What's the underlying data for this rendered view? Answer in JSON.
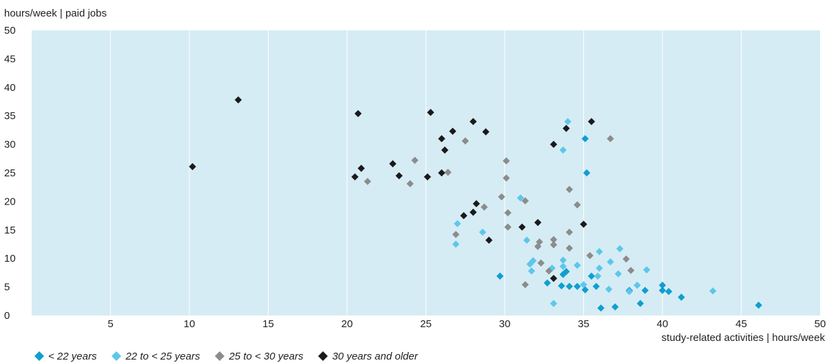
{
  "chart_data": {
    "type": "scatter",
    "title": "",
    "ylabel": "hours/week | paid jobs",
    "xlabel": "study-related activities | hours/week",
    "xlim": [
      0,
      50
    ],
    "ylim": [
      0,
      50
    ],
    "xticks": [
      5,
      10,
      15,
      20,
      25,
      30,
      35,
      40,
      45,
      50
    ],
    "yticks": [
      0,
      5,
      10,
      15,
      20,
      25,
      30,
      35,
      40,
      45,
      50
    ],
    "grid": "vertical",
    "background_color": "#d6ecf5",
    "legend_position": "bottom-left",
    "marker": "diamond",
    "series": [
      {
        "name": "< 22 years",
        "color": "#0f9fd0",
        "points": [
          [
            29.7,
            6.9
          ],
          [
            32.7,
            5.7
          ],
          [
            33.6,
            5.2
          ],
          [
            33.7,
            7.2
          ],
          [
            33.9,
            7.7
          ],
          [
            34.1,
            5.1
          ],
          [
            34.6,
            5.1
          ],
          [
            35.1,
            4.5
          ],
          [
            35.1,
            31.0
          ],
          [
            35.2,
            25.0
          ],
          [
            35.5,
            6.9
          ],
          [
            35.8,
            5.1
          ],
          [
            36.1,
            1.3
          ],
          [
            37.0,
            1.5
          ],
          [
            37.9,
            4.4
          ],
          [
            38.6,
            2.1
          ],
          [
            38.9,
            4.4
          ],
          [
            40.0,
            5.3
          ],
          [
            40.0,
            4.4
          ],
          [
            40.4,
            4.2
          ],
          [
            41.2,
            3.2
          ],
          [
            46.1,
            1.8
          ]
        ]
      },
      {
        "name": "22 to < 25 years",
        "color": "#5ec6eb",
        "points": [
          [
            26.9,
            12.5
          ],
          [
            27.0,
            16.1
          ],
          [
            28.6,
            14.6
          ],
          [
            31.0,
            20.6
          ],
          [
            31.4,
            13.2
          ],
          [
            31.6,
            9.0
          ],
          [
            31.7,
            7.8
          ],
          [
            31.8,
            9.6
          ],
          [
            33.0,
            8.3
          ],
          [
            33.1,
            2.1
          ],
          [
            33.7,
            9.7
          ],
          [
            33.7,
            8.6
          ],
          [
            33.7,
            29.0
          ],
          [
            34.0,
            34.0
          ],
          [
            34.6,
            8.8
          ],
          [
            35.0,
            5.4
          ],
          [
            35.9,
            6.9
          ],
          [
            36.0,
            8.3
          ],
          [
            36.0,
            11.2
          ],
          [
            36.6,
            4.6
          ],
          [
            36.7,
            9.4
          ],
          [
            37.2,
            7.3
          ],
          [
            37.3,
            11.7
          ],
          [
            37.9,
            4.2
          ],
          [
            38.4,
            5.3
          ],
          [
            39.0,
            8.0
          ],
          [
            43.2,
            4.3
          ]
        ]
      },
      {
        "name": "25 to < 30 years",
        "color": "#8c8c8c",
        "points": [
          [
            21.3,
            23.5
          ],
          [
            24.0,
            23.1
          ],
          [
            24.3,
            27.2
          ],
          [
            26.4,
            25.1
          ],
          [
            27.5,
            30.6
          ],
          [
            26.9,
            14.2
          ],
          [
            28.7,
            19.0
          ],
          [
            29.8,
            20.8
          ],
          [
            30.1,
            27.1
          ],
          [
            30.1,
            24.1
          ],
          [
            30.2,
            18.0
          ],
          [
            30.2,
            15.5
          ],
          [
            31.3,
            20.1
          ],
          [
            31.3,
            5.4
          ],
          [
            32.1,
            12.1
          ],
          [
            32.2,
            12.9
          ],
          [
            32.3,
            9.2
          ],
          [
            32.8,
            7.8
          ],
          [
            33.1,
            13.3
          ],
          [
            33.1,
            12.4
          ],
          [
            34.1,
            22.1
          ],
          [
            34.1,
            14.6
          ],
          [
            34.1,
            11.8
          ],
          [
            34.6,
            19.4
          ],
          [
            35.4,
            10.5
          ],
          [
            36.7,
            31.0
          ],
          [
            37.7,
            9.9
          ],
          [
            38.0,
            7.9
          ]
        ]
      },
      {
        "name": "30 years and older",
        "color": "#1a1a1a",
        "points": [
          [
            10.2,
            26.1
          ],
          [
            13.1,
            37.8
          ],
          [
            20.5,
            24.3
          ],
          [
            20.7,
            35.4
          ],
          [
            20.9,
            25.8
          ],
          [
            22.9,
            26.6
          ],
          [
            23.3,
            24.5
          ],
          [
            25.1,
            24.3
          ],
          [
            25.3,
            35.6
          ],
          [
            26.0,
            31.0
          ],
          [
            26.0,
            25.0
          ],
          [
            26.2,
            29.0
          ],
          [
            26.7,
            32.3
          ],
          [
            27.4,
            17.5
          ],
          [
            28.0,
            18.1
          ],
          [
            28.0,
            34.0
          ],
          [
            28.2,
            19.6
          ],
          [
            28.8,
            32.2
          ],
          [
            29.0,
            13.2
          ],
          [
            31.1,
            15.5
          ],
          [
            32.1,
            16.3
          ],
          [
            33.1,
            30.0
          ],
          [
            33.1,
            6.5
          ],
          [
            33.9,
            32.8
          ],
          [
            35.0,
            16.0
          ],
          [
            35.5,
            34.0
          ]
        ]
      }
    ]
  }
}
